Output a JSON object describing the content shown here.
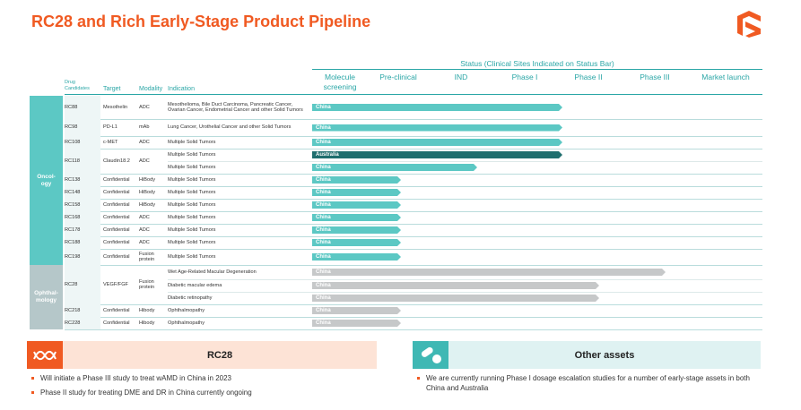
{
  "title": "RC28 and Rich Early-Stage Product Pipeline",
  "status_header": "Status (Clinical Sites Indicated on Status Bar)",
  "column_headers": [
    "Drug Candidates",
    "Target",
    "Modality",
    "Indication"
  ],
  "stages": [
    "Molecule screening",
    "Pre-clinical",
    "IND",
    "Phase I",
    "Phase II",
    "Phase III",
    "Market launch"
  ],
  "groups": [
    {
      "label": [
        "Oncol-",
        "ogy"
      ],
      "drugs": [
        {
          "name": "RC88",
          "target": "Mesothelin",
          "modality": "ADC",
          "indications": [
            {
              "text": "Mesothelioma, Bile Duct Carcinoma, Pancreatic Cancer, Ovarian Cancer, Endometrial Cancer and other Solid Tumors",
              "site": "China"
            }
          ]
        },
        {
          "name": "RC98",
          "target": "PD-L1",
          "modality": "mAb",
          "indications": [
            {
              "text": "Lung Cancer, Urothelial Cancer and other Solid Tumors",
              "site": "China"
            }
          ]
        },
        {
          "name": "RC108",
          "target": "c-MET",
          "modality": "ADC",
          "indications": [
            {
              "text": "Multiple Solid Tumors",
              "site": "China"
            }
          ]
        },
        {
          "name": "RC118",
          "target": "Claudin18.2",
          "modality": "ADC",
          "indications": [
            {
              "text": "Multiple Solid Tumors",
              "site": "Australia"
            },
            {
              "text": "Multiple Solid Tumors",
              "site": "China"
            }
          ]
        },
        {
          "name": "RC138",
          "target": "Confidential",
          "modality": "HiBody",
          "indications": [
            {
              "text": "Multiple Solid Tumors",
              "site": "China"
            }
          ]
        },
        {
          "name": "RC148",
          "target": "Confidential",
          "modality": "HiBody",
          "indications": [
            {
              "text": "Multiple Solid Tumors",
              "site": "China"
            }
          ]
        },
        {
          "name": "RC158",
          "target": "Confidential",
          "modality": "HiBody",
          "indications": [
            {
              "text": "Multiple Solid Tumors",
              "site": "China"
            }
          ]
        },
        {
          "name": "RC168",
          "target": "Confidential",
          "modality": "ADC",
          "indications": [
            {
              "text": "Multiple Solid Tumors",
              "site": "China"
            }
          ]
        },
        {
          "name": "RC178",
          "target": "Confidential",
          "modality": "ADC",
          "indications": [
            {
              "text": "Multiple Solid Tumors",
              "site": "China"
            }
          ]
        },
        {
          "name": "RC188",
          "target": "Confidential",
          "modality": "ADC",
          "indications": [
            {
              "text": "Multiple Solid Tumors",
              "site": "China"
            }
          ]
        },
        {
          "name": "RC198",
          "target": "Confidential",
          "modality": "Fusion protein",
          "indications": [
            {
              "text": "Multiple Solid Tumors",
              "site": "China"
            }
          ]
        }
      ]
    },
    {
      "label": [
        "Ophthal-",
        "mology"
      ],
      "drugs": [
        {
          "name": "RC28",
          "target": "VEGF/FGF",
          "modality": "Fusion protein",
          "indications": [
            {
              "text": "Wet Age-Related Macular Degeneration",
              "site": "China"
            },
            {
              "text": "Diabetic macular edema",
              "site": "China"
            },
            {
              "text": "Diabetic retinopathy",
              "site": "China"
            }
          ]
        },
        {
          "name": "RC218",
          "target": "Confidential",
          "modality": "Hibody",
          "indications": [
            {
              "text": "Ophthalmopathy",
              "site": "China"
            }
          ]
        },
        {
          "name": "RC228",
          "target": "Confidential",
          "modality": "Hibody",
          "indications": [
            {
              "text": "Ophthalmopathy",
              "site": "China"
            }
          ]
        }
      ]
    }
  ],
  "panels": [
    {
      "title": "RC28",
      "bullets": [
        "Will initiate a Phase III study to treat wAMD in China in 2023",
        "Phase II study for treating DME and DR in China currently ongoing"
      ]
    },
    {
      "title": "Other assets",
      "bullets": [
        "We are currently running Phase I dosage escalation studies for a number of early-stage assets in both China and Australia"
      ]
    }
  ]
}
